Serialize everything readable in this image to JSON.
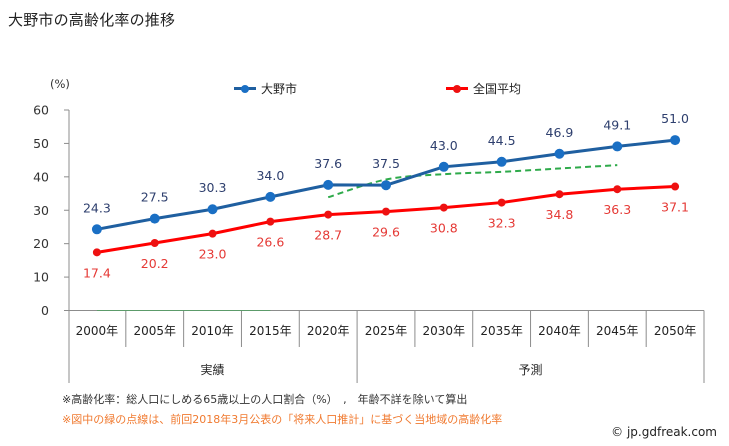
{
  "title": "大野市の高齢化率の推移",
  "legend": [
    {
      "label": "大野市",
      "color": "#1f5fa0",
      "marker_color": "#1a6fc4"
    },
    {
      "label": "全国平均",
      "color": "#ff0000",
      "marker_color": "#ee1111"
    }
  ],
  "footnotes": [
    "※高齢化率：総人口にしめる65歳以上の人口割合（%）　,　年齢不詳を除いて算出",
    "※図中の緑の点線は、前回2018年3月公表の「将来人口推計」に基づく当地域の高齢化率"
  ],
  "copyright": "© jp.gdfreak.com",
  "chart_data": {
    "type": "line",
    "title": "大野市の高齢化率の推移",
    "xlabel": "",
    "ylabel": "(%)",
    "ylim": [
      0,
      60
    ],
    "yticks": [
      0,
      10,
      20,
      30,
      40,
      50,
      60
    ],
    "grid": false,
    "legend_position": "top",
    "categories": [
      "2000年",
      "2005年",
      "2010年",
      "2015年",
      "2020年",
      "2025年",
      "2030年",
      "2035年",
      "2040年",
      "2045年",
      "2050年"
    ],
    "category_groups": [
      {
        "label": "実績",
        "from": 0,
        "to": 4
      },
      {
        "label": "予測",
        "from": 5,
        "to": 10
      }
    ],
    "series": [
      {
        "name": "大野市",
        "color": "#1f5fa0",
        "marker_color": "#1a6fc4",
        "label_color": "#2e3f6e",
        "label_position": "above",
        "values": [
          24.3,
          27.5,
          30.3,
          34.0,
          37.6,
          37.5,
          43.0,
          44.5,
          46.9,
          49.1,
          51.0
        ]
      },
      {
        "name": "全国平均",
        "color": "#ff0000",
        "marker_color": "#ee1111",
        "label_color": "#e53935",
        "label_position": "below",
        "values": [
          17.4,
          20.2,
          23.0,
          26.6,
          28.7,
          29.6,
          30.8,
          32.3,
          34.8,
          36.3,
          37.1
        ]
      },
      {
        "name": "",
        "style": "dashed",
        "color": "#2eaa4a",
        "show_labels": false,
        "values": [
          null,
          null,
          null,
          null,
          33.9,
          39.2,
          40.8,
          41.5,
          42.5,
          43.5,
          null
        ]
      }
    ]
  }
}
